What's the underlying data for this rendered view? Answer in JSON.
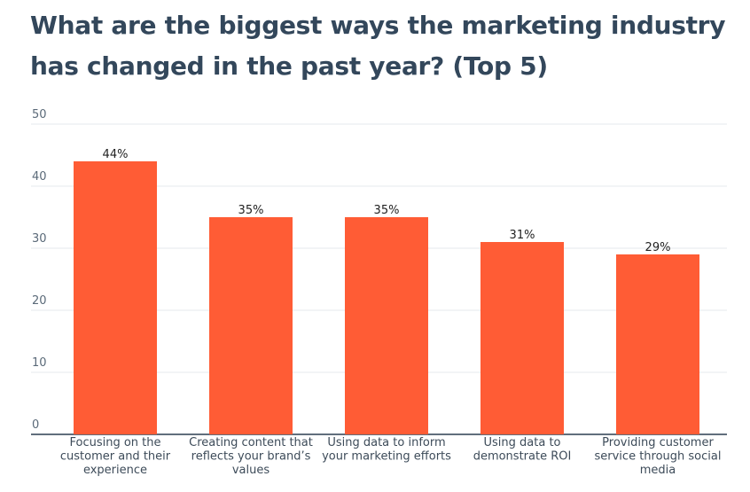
{
  "title_lines": [
    "What are the biggest ways the marketing industry",
    "has changed in the past year? (Top 5)"
  ],
  "colors": {
    "bar": "#ff5c35",
    "title": "#33475b",
    "grid": "#e6e9ec",
    "axis": "#2d3e50"
  },
  "chart_data": {
    "type": "bar",
    "title": "What are the biggest ways the marketing industry has changed in the past year? (Top 5)",
    "categories": [
      [
        "Focusing on the",
        "customer and their",
        "experience"
      ],
      [
        "Creating content that",
        "reflects your brand’s",
        "values"
      ],
      [
        "Using data to inform",
        "your marketing efforts"
      ],
      [
        "Using data to",
        "demonstrate ROI"
      ],
      [
        "Providing customer",
        "service through social",
        "media"
      ]
    ],
    "values": [
      44,
      35,
      35,
      31,
      29
    ],
    "value_labels": [
      "44%",
      "35%",
      "35%",
      "31%",
      "29%"
    ],
    "yticks": [
      0,
      10,
      20,
      30,
      40,
      50
    ],
    "ylim": [
      0,
      50
    ],
    "xlabel": "",
    "ylabel": "",
    "grid": true,
    "legend": "none"
  }
}
